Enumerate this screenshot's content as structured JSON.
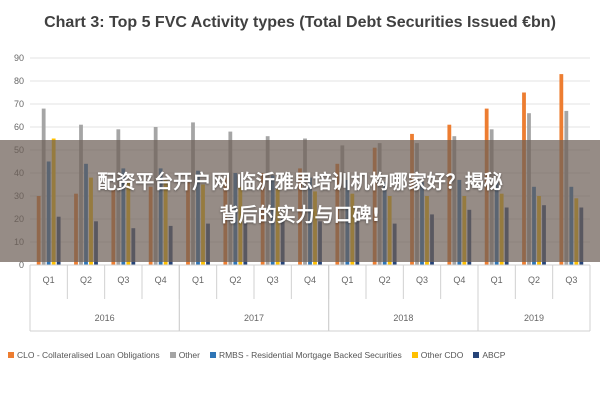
{
  "chart_data": {
    "type": "bar",
    "title": "Chart 3: Top 5 FVC Activity types (Total Debt Securities Issued €bn)",
    "yticks": [
      "0",
      "10",
      "20",
      "30",
      "40",
      "50",
      "60",
      "70",
      "80",
      "90"
    ],
    "ylim": [
      0,
      90
    ],
    "grid": true,
    "legend_position": "bottom",
    "categories": [
      "Q1",
      "Q2",
      "Q3",
      "Q4",
      "Q1",
      "Q2",
      "Q3",
      "Q4",
      "Q1",
      "Q2",
      "Q3",
      "Q4",
      "Q1",
      "Q2",
      "Q3"
    ],
    "years": [
      {
        "label": "2016",
        "quarters": 4
      },
      {
        "label": "2017",
        "quarters": 4
      },
      {
        "label": "2018",
        "quarters": 4
      },
      {
        "label": "2019",
        "quarters": 3
      }
    ],
    "series": [
      {
        "name": "CLO - Collateralised Loan Obligations",
        "color": "#ed7d31",
        "values": [
          30,
          31,
          33,
          34,
          36,
          38,
          40,
          42,
          44,
          51,
          57,
          61,
          68,
          75,
          83
        ]
      },
      {
        "name": "Other",
        "color": "#a5a5a5",
        "values": [
          68,
          61,
          59,
          60,
          62,
          58,
          56,
          55,
          52,
          53,
          53,
          56,
          59,
          66,
          67
        ]
      },
      {
        "name": "RMBS - Residential Mortgage Backed Securities",
        "color": "#2e75b6",
        "values": [
          45,
          44,
          42,
          42,
          41,
          40,
          39,
          38,
          37,
          36,
          36,
          37,
          36,
          34,
          34
        ]
      },
      {
        "name": "Other CDO",
        "color": "#ffc000",
        "values": [
          55,
          38,
          36,
          37,
          35,
          34,
          33,
          32,
          31,
          30,
          30,
          30,
          31,
          30,
          29
        ]
      },
      {
        "name": "ABCP",
        "color": "#264478",
        "values": [
          21,
          19,
          16,
          17,
          18,
          19,
          20,
          19,
          19,
          18,
          22,
          24,
          25,
          26,
          25
        ]
      }
    ]
  },
  "overlay": {
    "line1": "配资平台开户网  临沂雅思培训机构哪家好？揭秘",
    "line2": "背后的实力与口碑!"
  }
}
